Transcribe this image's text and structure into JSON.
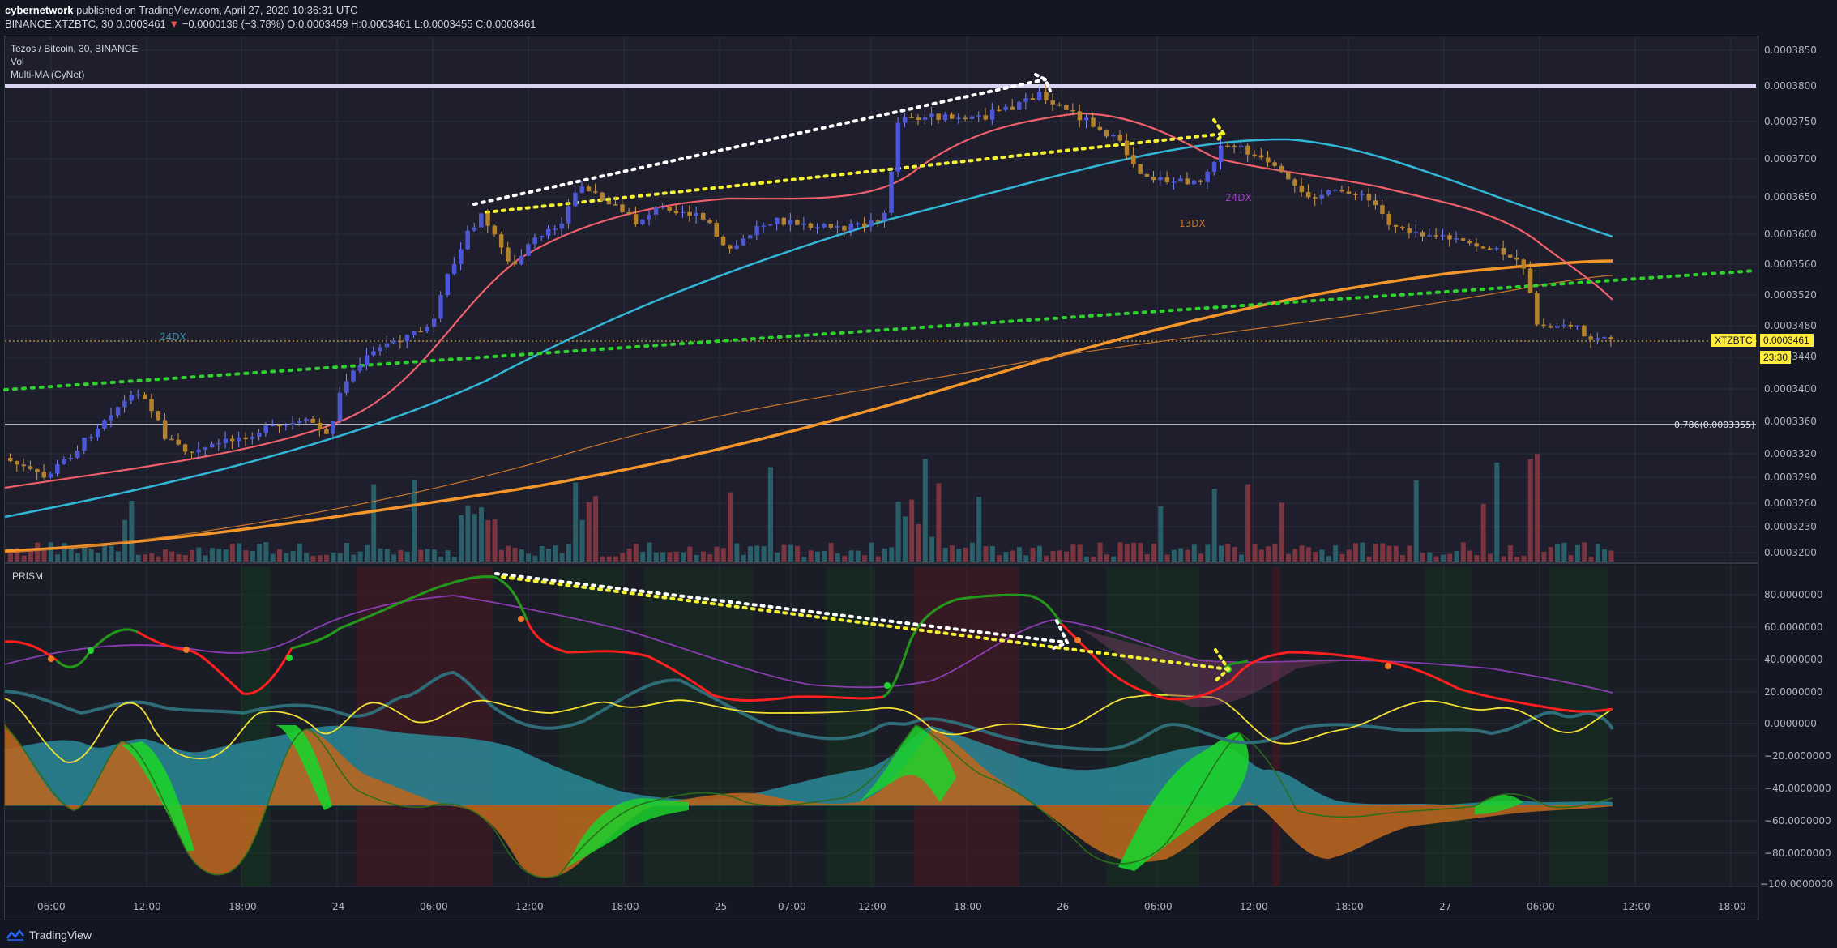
{
  "header": {
    "publisher": "cybernetwork",
    "published_text": "published on TradingView.com, April 27, 2020 10:36:31 UTC",
    "symbol_line": "BINANCE:XTZBTC, 30  0.0003461",
    "change": "−0.0000136 (−3.78%)",
    "open": "O:0.0003459",
    "high": "H:0.0003461",
    "low": "L:0.0003455",
    "close": "C:0.0003461"
  },
  "legend": {
    "title": "Tezos / Bitcoin, 30, BINANCE",
    "vol": "Vol",
    "ma": "Multi-MA (CyNet)",
    "prism": "PRISM"
  },
  "annotations": {
    "label_24dx_left": "24DX",
    "label_13dx": "13DX",
    "label_24dx_right": "24DX",
    "fib": "0.786(0.0003355)"
  },
  "price_axis": [
    "0.0003850",
    "0.0003800",
    "0.0003750",
    "0.0003700",
    "0.0003650",
    "0.0003600",
    "0.0003560",
    "0.0003520",
    "0.0003480",
    "0.0003440",
    "0.0003400",
    "0.0003360",
    "0.0003320",
    "0.0003290",
    "0.0003260",
    "0.0003230",
    "0.0003200"
  ],
  "current_price": {
    "symbol": "XTZBTC",
    "price": "0.0003461",
    "countdown": "23:30"
  },
  "osc_axis": [
    "80.0000000",
    "60.0000000",
    "40.0000000",
    "20.0000000",
    "0.0000000",
    "−20.0000000",
    "−40.0000000",
    "−60.0000000",
    "−80.0000000",
    "−100.0000000"
  ],
  "time_axis": [
    "06:00",
    "12:00",
    "18:00",
    "24",
    "06:00",
    "12:00",
    "18:00",
    "25",
    "07:00",
    "12:00",
    "18:00",
    "26",
    "06:00",
    "12:00",
    "18:00",
    "27",
    "06:00",
    "12:00",
    "18:00"
  ],
  "footer": {
    "brand": "TradingView"
  },
  "colors": {
    "background": "#131722",
    "up_candle": "#4c56d6",
    "down_candle": "#b4822c",
    "ema_red": "#f0606b",
    "ema_blue": "#33b7d6",
    "ma_orange": "#f5962a",
    "green_dotted": "#2ed12e",
    "yellow_dotted": "#f4f133",
    "resistance": "#d9d2f0",
    "osc_red": "#ff1f1f",
    "osc_green": "#1c9a1c"
  }
}
